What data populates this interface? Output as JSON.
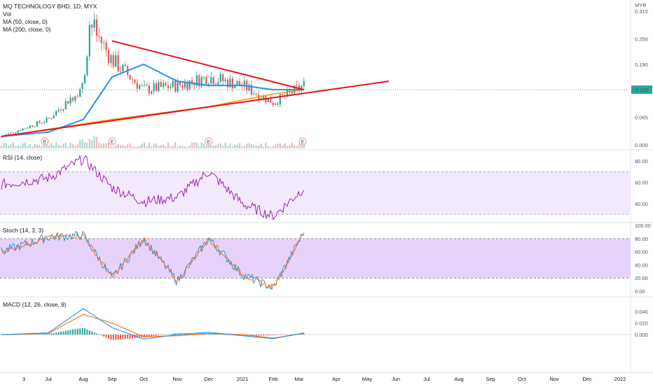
{
  "header": {
    "title": "MQ TECHNOLOGY BHD, 1D, MYX",
    "currency": "MYR"
  },
  "legend": {
    "vol": "Vol",
    "ma50": "MA (50, close, 0)",
    "ma200": "MA (200, close, 0)",
    "rsi": "RSI (14, close)",
    "stoch": "Stoch (14, 3, 3)",
    "macd": "MACD (12, 26, close, 9)"
  },
  "last_price_label": "0.130",
  "earnings_marker": "E",
  "colors": {
    "background": "#ffffff",
    "up_candle": "#26a69a",
    "down_candle": "#ef5350",
    "trendline": "#e8141c",
    "ma50": "#2196f3",
    "ma200": "#ff9800",
    "rsi_line": "#9c27b0",
    "osc_band": "#ede0fb",
    "macd_line": "#2196f3",
    "signal_line": "#ff6d00",
    "last_price_badge": "#26a69a"
  },
  "chart_data": [
    {
      "type": "candlestick",
      "name": "MQ TECHNOLOGY BHD",
      "x_ticks": [
        "3",
        "Jul",
        "Aug",
        "Sep",
        "Oct",
        "Nov",
        "Dec",
        "2021",
        "Feb",
        "Mar",
        "Apr",
        "May",
        "Jun",
        "Jul",
        "Aug",
        "Sep",
        "Oct",
        "Nov",
        "Dec",
        "2022"
      ],
      "y_ticks": [
        0.315,
        0.25,
        0.19,
        0.13,
        0.065,
        0.0
      ],
      "ylim": [
        0,
        0.33
      ],
      "approx_close_series": {
        "x": [
          "Jun",
          "Jul",
          "Aug",
          "Aug-mid",
          "Sep",
          "Oct",
          "Nov",
          "Dec",
          "2021",
          "Feb",
          "Mar"
        ],
        "y": [
          0.02,
          0.06,
          0.14,
          0.29,
          0.2,
          0.13,
          0.14,
          0.16,
          0.14,
          0.1,
          0.14
        ]
      },
      "ma50": {
        "x": [
          "Jun",
          "Jul",
          "Aug",
          "Sep",
          "Oct",
          "Nov",
          "Dec",
          "2021",
          "Feb",
          "Mar"
        ],
        "y": [
          0.02,
          0.03,
          0.06,
          0.16,
          0.19,
          0.15,
          0.14,
          0.14,
          0.13,
          0.13
        ]
      },
      "ma200": {
        "x": [
          "Jun",
          "Sep",
          "Dec",
          "Feb",
          "Mar"
        ],
        "y": [
          0.02,
          0.06,
          0.09,
          0.12,
          0.13
        ]
      },
      "trendlines": [
        {
          "from": [
            "Sep",
            0.245
          ],
          "to": [
            "Mar",
            0.13
          ]
        },
        {
          "from": [
            "Jun",
            0.02
          ],
          "to": [
            "May",
            0.15
          ]
        }
      ],
      "earnings_events": [
        "Jun",
        "Sep",
        "Dec",
        "Mar"
      ],
      "last_price": 0.13
    },
    {
      "type": "line",
      "name": "RSI (14, close)",
      "y_ticks": [
        80,
        60,
        40
      ],
      "ylim": [
        20,
        90
      ],
      "band": [
        30,
        70
      ],
      "x": [
        "Jun",
        "Jul",
        "Aug",
        "Sep",
        "Oct",
        "Nov",
        "Dec",
        "2021",
        "Feb",
        "Mar"
      ],
      "y": [
        58,
        64,
        82,
        55,
        42,
        46,
        70,
        40,
        28,
        55
      ]
    },
    {
      "type": "line",
      "name": "Stoch (14, 3, 3)",
      "y_ticks": [
        100,
        80,
        60,
        40,
        20,
        0
      ],
      "ylim": [
        0,
        100
      ],
      "band": [
        20,
        80
      ],
      "x": [
        "Jun",
        "Jul",
        "Aug",
        "Sep",
        "Oct",
        "Nov",
        "Dec",
        "2021",
        "Feb",
        "Mar"
      ],
      "y": [
        60,
        82,
        85,
        20,
        80,
        15,
        80,
        25,
        5,
        90
      ]
    },
    {
      "type": "line",
      "name": "MACD (12, 26, close, 9)",
      "y_ticks": [
        0.04,
        0.02,
        0.0
      ],
      "ylim": [
        -0.012,
        0.048
      ],
      "x": [
        "Jun",
        "Jul",
        "Aug",
        "Sep",
        "Oct",
        "Nov",
        "Dec",
        "2021",
        "Feb",
        "Mar"
      ],
      "macd": [
        0.0,
        0.003,
        0.045,
        0.012,
        -0.008,
        0.0,
        0.004,
        -0.002,
        -0.007,
        0.003
      ],
      "signal": [
        0.0,
        0.002,
        0.035,
        0.02,
        -0.004,
        -0.002,
        0.002,
        0.0,
        -0.006,
        0.002
      ]
    }
  ]
}
